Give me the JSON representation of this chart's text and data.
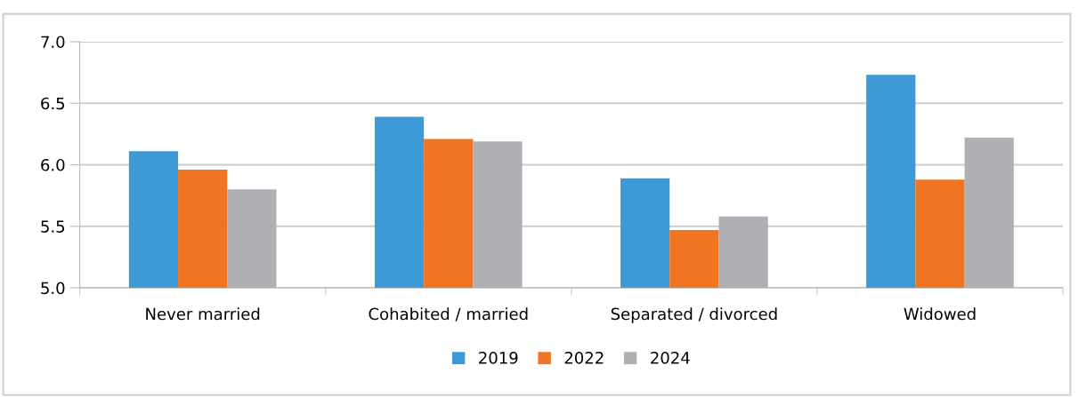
{
  "chart_data": {
    "type": "bar",
    "categories": [
      "Never married",
      "Cohabited / married",
      "Separated / divorced",
      "Widowed"
    ],
    "series": [
      {
        "name": "2019",
        "color": "#3e9ad6",
        "values": [
          6.11,
          6.39,
          5.89,
          6.73
        ]
      },
      {
        "name": "2022",
        "color": "#f07522",
        "values": [
          5.96,
          6.21,
          5.47,
          5.88
        ]
      },
      {
        "name": "2024",
        "color": "#afb0b3",
        "values": [
          5.8,
          6.19,
          5.58,
          6.22
        ]
      }
    ],
    "ylim": [
      5.0,
      7.0
    ],
    "yticks": [
      {
        "value": 5.0,
        "label": "5.0"
      },
      {
        "value": 5.5,
        "label": "5.5"
      },
      {
        "value": 6.0,
        "label": "6.0"
      },
      {
        "value": 6.5,
        "label": "6.5"
      },
      {
        "value": 7.0,
        "label": "7.0"
      }
    ],
    "grid": "y",
    "legend": "bottom"
  }
}
